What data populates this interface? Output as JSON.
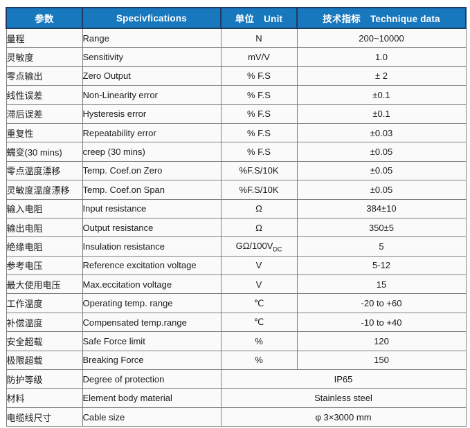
{
  "colors": {
    "header_bg": "#1878BE",
    "header_text": "#FFFFFF",
    "header_border": "#1F3B63",
    "body_border": "#7F7F7F",
    "body_bg": "#FAFAFA",
    "body_text": "#1A1A1A"
  },
  "header": {
    "col1": "参数",
    "col2": "Specivfications",
    "col3_cn": "单位",
    "col3_en": "Unit",
    "col4_cn": "技术指标",
    "col4_en": "Technique data"
  },
  "rows": [
    {
      "param": "量程",
      "spec": "Range",
      "unit": "N",
      "value": "200~10000"
    },
    {
      "param": "灵敏度",
      "spec": "Sensitivity",
      "unit": "mV/V",
      "value": "1.0"
    },
    {
      "param": "零点输出",
      "spec": "Zero Output",
      "unit": "% F.S",
      "value": "± 2"
    },
    {
      "param": "线性误差",
      "spec": "Non-Linearity error",
      "unit": "% F.S",
      "value": "±0.1"
    },
    {
      "param": "滞后误差",
      "spec": "Hysteresis error",
      "unit": "% F.S",
      "value": "±0.1"
    },
    {
      "param": "重复性",
      "spec": "Repeatability error",
      "unit": "% F.S",
      "value": "±0.03"
    },
    {
      "param": "蠕变(30 mins)",
      "spec": "creep (30 mins)",
      "unit": "% F.S",
      "value": "±0.05"
    },
    {
      "param": "零点温度漂移",
      "spec": "Temp. Coef.on Zero",
      "unit": "%F.S/10K",
      "value": "±0.05"
    },
    {
      "param": "灵敏度温度漂移",
      "spec": "Temp. Coef.on Span",
      "unit": "%F.S/10K",
      "value": "±0.05"
    },
    {
      "param": "输入电阻",
      "spec": "Input resistance",
      "unit": "Ω",
      "value": "384±10"
    },
    {
      "param": "输出电阻",
      "spec": "Output resistance",
      "unit": "Ω",
      "value": "350±5"
    },
    {
      "param": "绝缘电阻",
      "spec": "Insulation resistance",
      "unit": "GΩ/100V",
      "unit_sub": "DC",
      "value": "5"
    },
    {
      "param": "参考电压",
      "spec": "Reference excitation voltage",
      "unit": "V",
      "value": "5-12"
    },
    {
      "param": "最大使用电压",
      "spec": "Max.eccitation voltage",
      "unit": "V",
      "value": "15"
    },
    {
      "param": "工作温度",
      "spec": "Operating temp. range",
      "unit": "℃",
      "value": "-20 to +60"
    },
    {
      "param": "补偿温度",
      "spec": "Compensated temp.range",
      "unit": "℃",
      "value": "-10 to +40"
    },
    {
      "param": "安全超载",
      "spec": "Safe Force limit",
      "unit": "%",
      "value": "120"
    },
    {
      "param": "极限超载",
      "spec": "Breaking Force",
      "unit": "%",
      "value": "150"
    },
    {
      "param": "防护等级",
      "spec": "Degree of protection",
      "merged_value": "IP65"
    },
    {
      "param": "材料",
      "spec": "Element body material",
      "merged_value": "Stainless steel"
    },
    {
      "param": "电缆线尺寸",
      "spec": "Cable size",
      "merged_value": "φ 3×3000 mm"
    }
  ]
}
